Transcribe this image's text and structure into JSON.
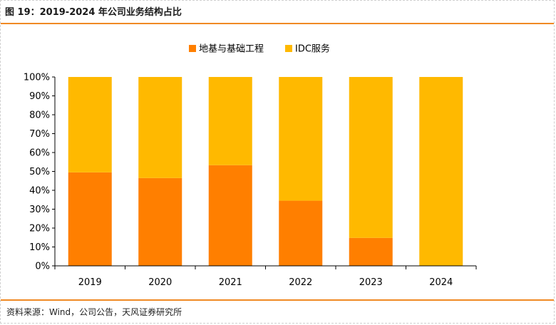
{
  "figure": {
    "title": "图 19：2019-2024 年公司业务结构占比",
    "source": "资料来源：Wind，公司公告，天风证券研究所"
  },
  "chart_data": {
    "type": "bar",
    "stacked": true,
    "categories": [
      "2019",
      "2020",
      "2021",
      "2022",
      "2023",
      "2024"
    ],
    "series": [
      {
        "name": "地基与基础工程",
        "color": "#ff7f00",
        "values": [
          49.5,
          46.5,
          53.3,
          34.5,
          14.8,
          0
        ]
      },
      {
        "name": "IDC服务",
        "color": "#ffb900",
        "values": [
          50.5,
          53.5,
          46.7,
          65.5,
          85.2,
          100
        ]
      }
    ],
    "ylim": [
      0,
      100
    ],
    "yticks": [
      "0%",
      "10%",
      "20%",
      "30%",
      "40%",
      "50%",
      "60%",
      "70%",
      "80%",
      "90%",
      "100%"
    ],
    "legend_position": "top-center",
    "grid": false
  }
}
